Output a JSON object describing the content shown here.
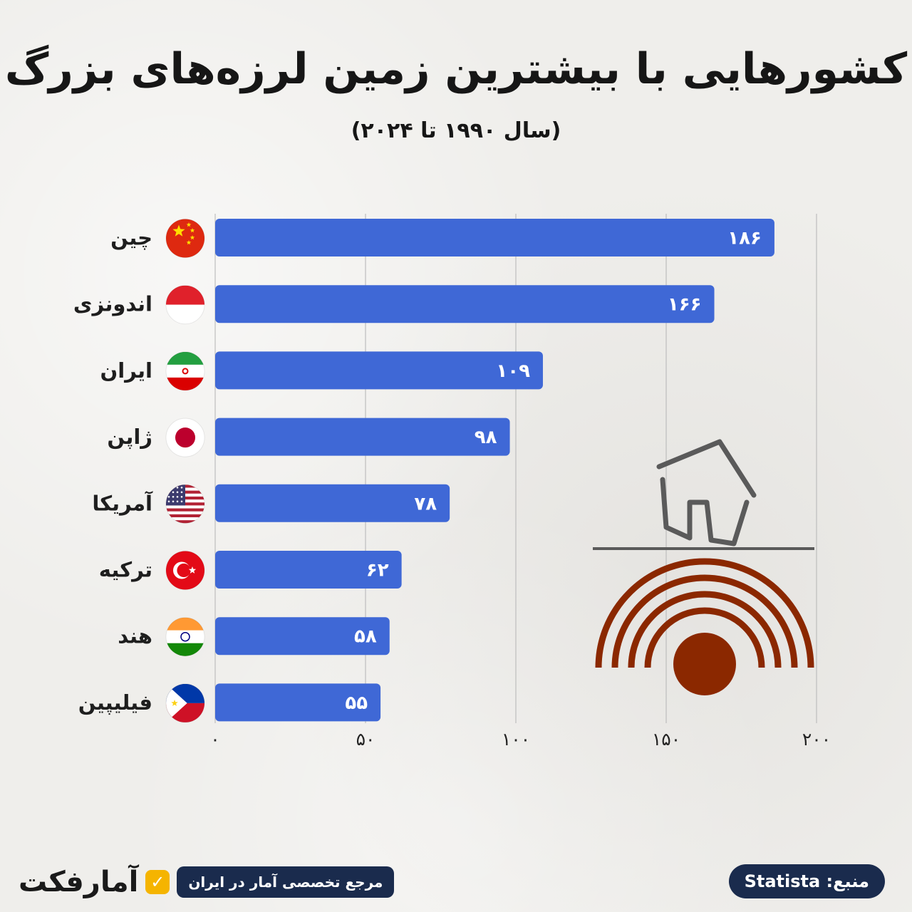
{
  "header": {
    "title": "کشورهایی با بیشترین زمین لرزه‌های بزرگ",
    "subtitle": "(سال ۱۹۹۰ تا ۲۰۲۴)"
  },
  "colors": {
    "bar": "#3f68d6",
    "grid": "#bdbdbd",
    "quake_rings": "#8b2800",
    "house": "#5a5a5a"
  },
  "chart_data": {
    "type": "bar",
    "orientation": "horizontal",
    "categories": [
      "چین",
      "اندونزی",
      "ایران",
      "ژاپن",
      "آمریکا",
      "ترکیه",
      "هند",
      "فیلیپین"
    ],
    "flag_icons": [
      "china-flag-icon",
      "indonesia-flag-icon",
      "iran-flag-icon",
      "japan-flag-icon",
      "usa-flag-icon",
      "turkey-flag-icon",
      "india-flag-icon",
      "philippines-flag-icon"
    ],
    "values": [
      186,
      166,
      109,
      98,
      78,
      62,
      58,
      55
    ],
    "value_labels": [
      "۱۸۶",
      "۱۶۶",
      "۱۰۹",
      "۹۸",
      "۷۸",
      "۶۲",
      "۵۸",
      "۵۵"
    ],
    "xlim": [
      0,
      200
    ],
    "xticks": [
      0,
      50,
      100,
      150,
      200
    ],
    "xtick_labels": [
      "۰",
      "۵۰",
      "۱۰۰",
      "۱۵۰",
      "۲۰۰"
    ],
    "grid": true
  },
  "footer": {
    "brand_name": "آمارفکت",
    "brand_tagline": "مرجع تخصصی آمار در ایران",
    "source": "منبع: Statista"
  }
}
